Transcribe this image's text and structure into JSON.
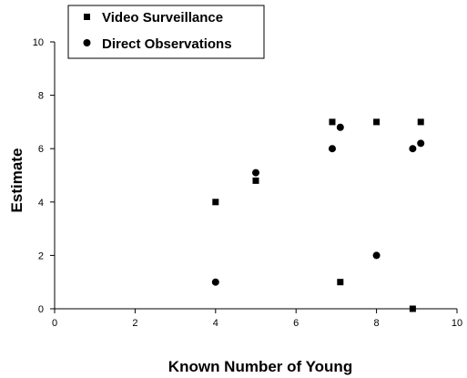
{
  "chart_data": {
    "type": "scatter",
    "xlabel": "Known Number of Young",
    "ylabel": "Estimate",
    "xlim": [
      0,
      10
    ],
    "ylim": [
      0,
      10
    ],
    "xticks": [
      "0",
      "2",
      "4",
      "6",
      "8",
      "10"
    ],
    "yticks": [
      "0",
      "2",
      "4",
      "6",
      "8",
      "10"
    ],
    "grid": false,
    "legend_position": "top-left",
    "series": [
      {
        "name": "Video Surveillance",
        "marker": "square",
        "color": "#000000",
        "points": [
          {
            "x": 4,
            "y": 4
          },
          {
            "x": 5,
            "y": 4.8
          },
          {
            "x": 6.9,
            "y": 7
          },
          {
            "x": 7.1,
            "y": 1
          },
          {
            "x": 8,
            "y": 7
          },
          {
            "x": 8.9,
            "y": 0
          },
          {
            "x": 9.1,
            "y": 7
          }
        ]
      },
      {
        "name": "Direct Observations",
        "marker": "circle",
        "color": "#000000",
        "points": [
          {
            "x": 4,
            "y": 1
          },
          {
            "x": 5,
            "y": 5.1
          },
          {
            "x": 6.9,
            "y": 6
          },
          {
            "x": 7.1,
            "y": 6.8
          },
          {
            "x": 8,
            "y": 2
          },
          {
            "x": 8.9,
            "y": 6
          },
          {
            "x": 9.1,
            "y": 6.2
          }
        ]
      }
    ]
  }
}
